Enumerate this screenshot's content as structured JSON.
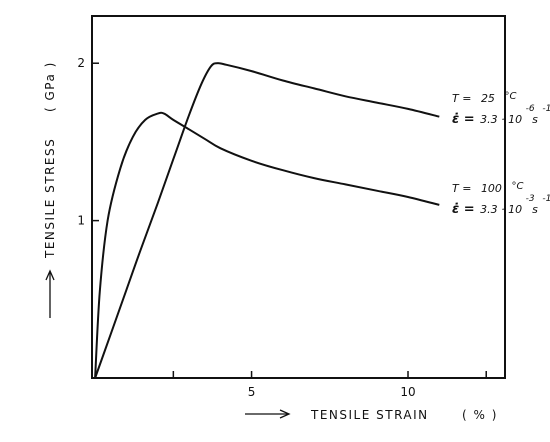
{
  "chart_data": {
    "type": "line",
    "xlabel": "TENSILE   STRAIN",
    "xunit": "( % )",
    "ylabel": "TENSILE   STRESS",
    "yunit": "( GPa )",
    "xlim": [
      -0.1,
      13.1
    ],
    "ylim": [
      0,
      2.3
    ],
    "xticks": [
      {
        "value": 2.5,
        "label": ""
      },
      {
        "value": 5,
        "label": "5"
      },
      {
        "value": 10,
        "label": "10"
      },
      {
        "value": 12.5,
        "label": ""
      }
    ],
    "yticks": [
      {
        "value": 1,
        "label": "1"
      },
      {
        "value": 2,
        "label": "2"
      }
    ],
    "grid": false,
    "series": [
      {
        "conditions": {
          "temp_prefix": "T =",
          "temp_value": "25",
          "temp_unit": "°C",
          "rate_prefix": "ε̇ =",
          "rate_value": "3.3 · 10",
          "rate_exp": "-6",
          "rate_unit": "s",
          "rate_unit_exp": "-1"
        },
        "x": [
          0,
          0.5,
          1.0,
          1.5,
          2.0,
          2.5,
          3.0,
          3.4,
          3.7,
          3.9,
          4.2,
          5.0,
          6.0,
          7.0,
          8.0,
          9.0,
          10.0,
          11.0
        ],
        "y": [
          0,
          0.28,
          0.56,
          0.84,
          1.11,
          1.39,
          1.67,
          1.87,
          1.98,
          2.0,
          1.99,
          1.95,
          1.89,
          1.84,
          1.79,
          1.75,
          1.71,
          1.66
        ]
      },
      {
        "conditions": {
          "temp_prefix": "T =",
          "temp_value": "100",
          "temp_unit": "°C",
          "rate_prefix": "ε̇ =",
          "rate_value": "3.3 · 10",
          "rate_exp": "-3",
          "rate_unit": "s",
          "rate_unit_exp": "-1"
        },
        "x": [
          0,
          0.15,
          0.4,
          0.8,
          1.2,
          1.6,
          2.0,
          2.2,
          2.5,
          3.0,
          3.5,
          4.0,
          5.0,
          6.0,
          7.0,
          8.0,
          9.0,
          10.0,
          11.0
        ],
        "y": [
          0,
          0.55,
          1.0,
          1.33,
          1.53,
          1.64,
          1.68,
          1.68,
          1.64,
          1.58,
          1.52,
          1.46,
          1.38,
          1.32,
          1.27,
          1.23,
          1.19,
          1.15,
          1.1
        ]
      }
    ]
  }
}
